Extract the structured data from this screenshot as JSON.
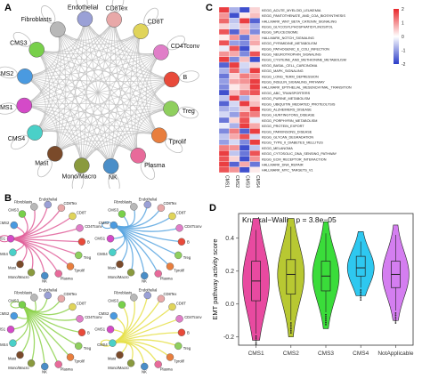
{
  "figure": {
    "panel_labels": [
      "A",
      "B",
      "C",
      "D"
    ]
  },
  "panel_a": {
    "nodes": [
      {
        "label": "Endothelial",
        "color": "#9aa0d6"
      },
      {
        "label": "CD8Tex",
        "color": "#e8a8a8"
      },
      {
        "label": "CD8T",
        "color": "#e0d45a"
      },
      {
        "label": "CD4Tconv",
        "color": "#e07ec8"
      },
      {
        "label": "B",
        "color": "#e84a3a"
      },
      {
        "label": "Treg",
        "color": "#8fcf5e"
      },
      {
        "label": "Tprolif",
        "color": "#e87e3e"
      },
      {
        "label": "Plasma",
        "color": "#e86a9a"
      },
      {
        "label": "NK",
        "color": "#4a8ec8"
      },
      {
        "label": "Mono/Macro",
        "color": "#8a9a3e"
      },
      {
        "label": "Mast",
        "color": "#7a4a2a"
      },
      {
        "label": "CMS4",
        "color": "#4ad0c8"
      },
      {
        "label": "CMS1",
        "color": "#d44ac8"
      },
      {
        "label": "CMS2",
        "color": "#4a9ae0"
      },
      {
        "label": "CMS3",
        "color": "#78d04a"
      },
      {
        "label": "Fibroblasts",
        "color": "#b8b8b8"
      }
    ]
  },
  "panel_b": {
    "subplots": [
      {
        "source": "CMS1",
        "edge_color": "#e0609a"
      },
      {
        "source": "CMS2",
        "edge_color": "#5aa6e0"
      },
      {
        "source": "CMS3",
        "edge_color": "#8ed24e"
      },
      {
        "source": "CMS4",
        "edge_color": "#e6e04a"
      }
    ],
    "node_labels": [
      "Fibroblasts",
      "Endothelial",
      "CD8Tex",
      "CD8T",
      "CD4Tconv",
      "B",
      "Treg",
      "Tprolif",
      "Plasma",
      "NK",
      "Mono/Macro",
      "Mast",
      "CMS4",
      "CMS1",
      "CMS2",
      "CMS3"
    ]
  },
  "panel_c": {
    "columns": [
      "CMS1",
      "CMS2",
      "CMS3",
      "CMS4"
    ],
    "rows": [
      "KEGG_ACUTE_MYELOID_LEUKEMIA",
      "KEGG_PANTOTHENATE_AND_COA_BIOSYNTHESIS",
      "HALLMARK_WNT_BETA_CATENIN_SIGNALING",
      "KEGG_GLYCOSYLPHOSPHATIDYLINOSITOL",
      "KEGG_SPLICEOSOME",
      "HALLMARK_NOTCH_SIGNALING",
      "KEGG_PYRIMIDINE_METABOLISM",
      "KEGG_PATHOGENIC_E_COLI_INFECTION",
      "KEGG_NEUROTROPHIN_SIGNALING",
      "KEGG_CYSTEINE_AND_METHIONINE_METABOLISM",
      "KEGG_BASAL_CELL_CARCINOMA",
      "KEGG_MAPK_SIGNALING",
      "KEGG_LONG_TERM_DEPRESSION",
      "KEGG_INSULIN_SIGNALING_PATHWAY",
      "HALLMARK_EPITHELIAL_MESENCHYMAL_TRANSITION",
      "KEGG_ABC_TRANSPORTERS",
      "KEGG_PURINE_METABOLISM",
      "KEGG_UBIQUITIN_MEDIATED_PROTEOLYSIS",
      "KEGG_ALZHEIMERS_DISEASE",
      "KEGG_HUNTINGTONS_DISEASE",
      "KEGG_PORPHYRIN_METABOLISM",
      "KEGG_PROTEIN_EXPORT",
      "KEGG_PARKINSONS_DISEASE",
      "KEGG_GLYCAN_DEGRADATION",
      "KEGG_TYPE_II_DIABETES_MELLITUS",
      "KEGG_MELANOMA",
      "KEGG_CYTOSOLIC_DNA_SENSING_PATHWAY",
      "KEGG_ECM_RECEPTOR_INTERACTION",
      "HALLMARK_DNA_REPAIR",
      "HALLMARK_MYC_TARGETS_V1"
    ],
    "values": [
      [
        0.9,
        -0.4,
        -0.9,
        0.2
      ],
      [
        0.5,
        -0.9,
        0.1,
        0.3
      ],
      [
        0.7,
        -0.3,
        0.9,
        -0.8
      ],
      [
        0.2,
        -0.2,
        0.3,
        -0.4
      ],
      [
        0.8,
        -0.8,
        0.4,
        -0.6
      ],
      [
        0.1,
        0.5,
        -0.7,
        0.3
      ],
      [
        0.8,
        -0.5,
        -0.6,
        0.4
      ],
      [
        -0.1,
        0.8,
        -0.9,
        0.1
      ],
      [
        0.5,
        0.4,
        -0.6,
        0.8
      ],
      [
        0.9,
        -0.6,
        0.3,
        -0.9
      ],
      [
        -0.8,
        0.9,
        -0.2,
        0.2
      ],
      [
        -0.4,
        0.7,
        -0.3,
        0.9
      ],
      [
        -0.7,
        0.2,
        0.6,
        0.5
      ],
      [
        -0.5,
        0.4,
        0.5,
        0.9
      ],
      [
        -0.6,
        0.1,
        0.3,
        0.9
      ],
      [
        -0.9,
        0.3,
        0.6,
        0.8
      ],
      [
        -0.3,
        0.9,
        -0.4,
        0.2
      ],
      [
        -0.8,
        -0.2,
        0.9,
        0.3
      ],
      [
        -0.4,
        -0.3,
        0.3,
        0.9
      ],
      [
        -0.2,
        -0.5,
        0.7,
        0.6
      ],
      [
        -0.7,
        0.2,
        0.8,
        -0.1
      ],
      [
        -0.1,
        -0.4,
        0.9,
        0.4
      ],
      [
        -0.6,
        0.6,
        -0.8,
        0.9
      ],
      [
        -0.3,
        0.4,
        0.8,
        -0.2
      ],
      [
        -0.5,
        -0.2,
        -0.6,
        0.9
      ],
      [
        0.6,
        0.5,
        -0.9,
        -0.3
      ],
      [
        0.9,
        -0.3,
        -0.7,
        0.8
      ],
      [
        0.8,
        0.2,
        -0.9,
        0.5
      ],
      [
        0.9,
        -0.8,
        0.4,
        -0.7
      ],
      [
        0.8,
        0.5,
        -0.9,
        0.1
      ]
    ],
    "legend_ticks": [
      "2",
      "1",
      "0",
      "-1",
      "-2"
    ],
    "legend_colors": {
      "high": "#e8282c",
      "mid": "#ffffff",
      "low": "#2a3cc8"
    }
  },
  "chart_data": {
    "type": "violin",
    "title": "Kruskal−Wallis, p = 3.8e−05",
    "ylabel": "EMT pathway activity score",
    "categories": [
      "CMS1",
      "CMS2",
      "CMS3",
      "CMS4",
      "NotApplicable"
    ],
    "colors": [
      "#e84aa0",
      "#b8c832",
      "#3adc3a",
      "#2ec8f0",
      "#d47ef0"
    ],
    "ylim": [
      -0.25,
      0.55
    ],
    "yticks": [
      -0.2,
      0.0,
      0.2,
      0.4
    ],
    "box": [
      {
        "q1": 0.02,
        "median": 0.14,
        "q3": 0.26,
        "lo": -0.18,
        "hi": 0.45
      },
      {
        "q1": 0.06,
        "median": 0.18,
        "q3": 0.27,
        "lo": -0.1,
        "hi": 0.47
      },
      {
        "q1": 0.08,
        "median": 0.17,
        "q3": 0.26,
        "lo": -0.05,
        "hi": 0.43
      },
      {
        "q1": 0.17,
        "median": 0.22,
        "q3": 0.29,
        "lo": 0.1,
        "hi": 0.38
      },
      {
        "q1": 0.1,
        "median": 0.18,
        "q3": 0.26,
        "lo": -0.04,
        "hi": 0.42
      }
    ],
    "violin_range": [
      [
        -0.22,
        0.52
      ],
      [
        -0.2,
        0.52
      ],
      [
        -0.15,
        0.5
      ],
      [
        0.05,
        0.44
      ],
      [
        -0.1,
        0.48
      ]
    ]
  }
}
